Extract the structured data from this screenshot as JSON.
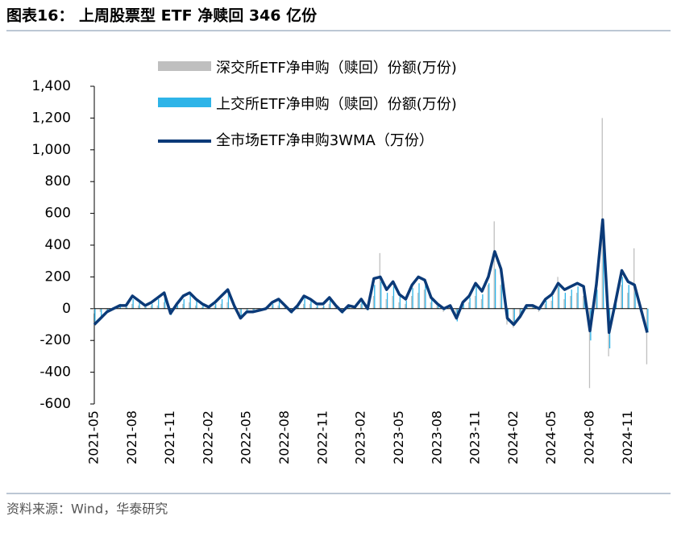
{
  "chart_data": {
    "type": "bar-line",
    "title": "图表16：  上周股票型 ETF 净赎回 346 亿份",
    "source": "资料来源：Wind，华泰研究",
    "categories": [
      "2021-05",
      null,
      null,
      null,
      null,
      null,
      "2021-08",
      null,
      null,
      null,
      null,
      null,
      "2021-11",
      null,
      null,
      null,
      null,
      null,
      "2022-02",
      null,
      null,
      null,
      null,
      null,
      "2022-05",
      null,
      null,
      null,
      null,
      null,
      "2022-08",
      null,
      null,
      null,
      null,
      null,
      "2022-11",
      null,
      null,
      null,
      null,
      null,
      "2023-02",
      null,
      null,
      null,
      null,
      null,
      "2023-05",
      null,
      null,
      null,
      null,
      null,
      "2023-08",
      null,
      null,
      null,
      null,
      null,
      "2023-11",
      null,
      null,
      null,
      null,
      null,
      "2024-02",
      null,
      null,
      null,
      null,
      null,
      "2024-05",
      null,
      null,
      null,
      null,
      null,
      "2024-08",
      null,
      null,
      null,
      null,
      null,
      "2024-11",
      null,
      null,
      null
    ],
    "series": [
      {
        "name": "深交所ETF净申购（赎回）份额(万份)",
        "color": "#bfbfbf",
        "kind": "bar",
        "values": [
          -30,
          -20,
          -10,
          10,
          10,
          10,
          30,
          20,
          10,
          20,
          20,
          40,
          -30,
          10,
          30,
          40,
          20,
          10,
          10,
          20,
          30,
          40,
          10,
          -30,
          -10,
          -10,
          -10,
          10,
          20,
          20,
          10,
          -20,
          10,
          30,
          30,
          10,
          10,
          30,
          10,
          -20,
          10,
          10,
          30,
          -10,
          80,
          350,
          60,
          80,
          40,
          30,
          80,
          100,
          120,
          40,
          20,
          -20,
          10,
          -60,
          30,
          40,
          80,
          60,
          150,
          550,
          150,
          -100,
          -120,
          -40,
          10,
          20,
          -20,
          30,
          50,
          200,
          60,
          80,
          100,
          80,
          -500,
          100,
          1200,
          -300,
          30,
          150,
          100,
          380,
          -20,
          -350
        ]
      },
      {
        "name": "上交所ETF净申购（赎回）份额(万份)",
        "color": "#2eb4e8",
        "kind": "bar",
        "values": [
          -80,
          -50,
          -10,
          10,
          30,
          10,
          60,
          40,
          10,
          30,
          60,
          80,
          -40,
          20,
          60,
          90,
          50,
          20,
          10,
          30,
          60,
          100,
          10,
          -50,
          -10,
          -20,
          -10,
          10,
          30,
          50,
          10,
          -30,
          10,
          70,
          50,
          20,
          20,
          60,
          10,
          -30,
          10,
          10,
          50,
          -10,
          150,
          170,
          100,
          140,
          80,
          50,
          130,
          160,
          150,
          60,
          20,
          -10,
          10,
          -80,
          30,
          70,
          140,
          90,
          160,
          250,
          200,
          -80,
          -90,
          -40,
          10,
          20,
          -10,
          50,
          80,
          140,
          100,
          120,
          140,
          120,
          -200,
          120,
          400,
          -250,
          30,
          200,
          150,
          120,
          -10,
          -150
        ]
      },
      {
        "name": "全市场ETF净申购3WMA（万份）",
        "color": "#0b3a78",
        "kind": "line",
        "values": [
          -100,
          -60,
          -20,
          0,
          20,
          20,
          80,
          50,
          20,
          40,
          70,
          100,
          -30,
          30,
          80,
          100,
          60,
          30,
          10,
          40,
          80,
          120,
          20,
          -60,
          -20,
          -20,
          -10,
          0,
          40,
          60,
          20,
          -20,
          20,
          80,
          60,
          30,
          30,
          70,
          20,
          -20,
          20,
          10,
          60,
          0,
          190,
          200,
          120,
          170,
          90,
          60,
          150,
          200,
          180,
          70,
          30,
          0,
          20,
          -60,
          40,
          80,
          160,
          110,
          200,
          360,
          250,
          -60,
          -100,
          -50,
          20,
          20,
          0,
          60,
          90,
          160,
          120,
          140,
          160,
          140,
          -140,
          150,
          560,
          -150,
          40,
          240,
          170,
          150,
          0,
          -150
        ]
      }
    ],
    "ylim": [
      -600,
      1400
    ],
    "yticks": [
      -600,
      -400,
      -200,
      0,
      200,
      400,
      600,
      800,
      {
        "value": 1000,
        "label": "1,000"
      },
      {
        "value": 1200,
        "label": "1,200"
      },
      {
        "value": 1400,
        "label": "1,400"
      }
    ]
  }
}
